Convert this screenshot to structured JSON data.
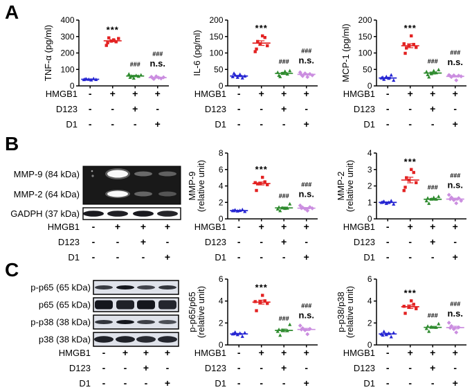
{
  "panels": {
    "a": "A",
    "b": "B",
    "c": "C"
  },
  "colors": {
    "control": "#2626d2",
    "hmgb1": "#e32222",
    "d123": "#2e8b2e",
    "d1": "#cb8ee0",
    "axis": "#000000",
    "gel_background": "#191919",
    "strip_background": "#dfe2ea",
    "band_dark": "#14161d"
  },
  "treatment_table": {
    "rows": [
      {
        "label": "HMGB1",
        "values": [
          "-",
          "+",
          "+",
          "+"
        ]
      },
      {
        "label": "D123",
        "values": [
          "-",
          "-",
          "+",
          "-"
        ]
      },
      {
        "label": "D1",
        "values": [
          "-",
          "-",
          "-",
          "+"
        ]
      }
    ]
  },
  "annotations_legend": {
    "significance_vs_control": "***",
    "significance_vs_hmgb1": "###",
    "not_significant": "n.s."
  },
  "chart_data": [
    {
      "id": "tnf_alpha",
      "panel": "A",
      "type": "scatter",
      "ylabel": [
        "TNF-α (pg/ml)"
      ],
      "ylim": [
        0,
        400
      ],
      "yticks": [
        0,
        100,
        200,
        300,
        400
      ],
      "groups": [
        {
          "name": "Control",
          "color_key": "control",
          "marker": "triangle",
          "points": [
            38,
            42,
            40,
            36,
            44,
            39,
            41
          ],
          "mean": 40,
          "sem": 2,
          "annotations": []
        },
        {
          "name": "HMGB1",
          "color_key": "hmgb1",
          "marker": "square",
          "points": [
            272,
            280,
            268,
            288,
            262,
            246,
            292
          ],
          "mean": 274,
          "sem": 6,
          "annotations": [
            "***"
          ]
        },
        {
          "name": "HMGB1+D123",
          "color_key": "d123",
          "marker": "triangle",
          "points": [
            58,
            66,
            52,
            72,
            60,
            47,
            63
          ],
          "mean": 60,
          "sem": 4,
          "annotations": [
            "###"
          ]
        },
        {
          "name": "HMGB1+D1",
          "color_key": "d1",
          "marker": "diamond",
          "points": [
            48,
            55,
            42,
            58,
            50,
            45,
            52
          ],
          "mean": 50,
          "sem": 3,
          "annotations": [
            "###",
            "n.s."
          ]
        }
      ]
    },
    {
      "id": "il6",
      "panel": "A",
      "type": "scatter",
      "ylabel": [
        "IL-6 (pg/ml)"
      ],
      "ylim": [
        0,
        200
      ],
      "yticks": [
        0,
        50,
        100,
        150,
        200
      ],
      "groups": [
        {
          "name": "Control",
          "color_key": "control",
          "marker": "triangle",
          "points": [
            28,
            33,
            26,
            35,
            24,
            30,
            38
          ],
          "mean": 30,
          "sem": 2,
          "annotations": []
        },
        {
          "name": "HMGB1",
          "color_key": "hmgb1",
          "marker": "square",
          "points": [
            128,
            152,
            147,
            122,
            112,
            104,
            135
          ],
          "mean": 130,
          "sem": 7,
          "annotations": [
            "***"
          ]
        },
        {
          "name": "HMGB1+D123",
          "color_key": "d123",
          "marker": "triangle",
          "points": [
            36,
            46,
            32,
            41,
            28,
            38,
            44
          ],
          "mean": 38,
          "sem": 3,
          "annotations": [
            "###"
          ]
        },
        {
          "name": "HMGB1+D1",
          "color_key": "d1",
          "marker": "diamond",
          "points": [
            34,
            41,
            30,
            38,
            27,
            36,
            32
          ],
          "mean": 35,
          "sem": 2,
          "annotations": [
            "###",
            "n.s."
          ]
        }
      ]
    },
    {
      "id": "mcp1",
      "panel": "A",
      "type": "scatter",
      "ylabel": [
        "MCP-1 (pg/ml)"
      ],
      "ylim": [
        0,
        200
      ],
      "yticks": [
        0,
        50,
        100,
        150,
        200
      ],
      "groups": [
        {
          "name": "Control",
          "color_key": "control",
          "marker": "triangle",
          "points": [
            24,
            20,
            28,
            23,
            33,
            17,
            26
          ],
          "mean": 24,
          "sem": 2,
          "annotations": []
        },
        {
          "name": "HMGB1",
          "color_key": "hmgb1",
          "marker": "square",
          "points": [
            122,
            152,
            126,
            117,
            99,
            128,
            115
          ],
          "mean": 122,
          "sem": 6,
          "annotations": [
            "***"
          ]
        },
        {
          "name": "HMGB1+D123",
          "color_key": "d123",
          "marker": "triangle",
          "points": [
            40,
            49,
            34,
            43,
            27,
            37,
            46
          ],
          "mean": 39,
          "sem": 3,
          "annotations": [
            "###"
          ]
        },
        {
          "name": "HMGB1+D1",
          "color_key": "d1",
          "marker": "diamond",
          "points": [
            30,
            33,
            27,
            32,
            17,
            31,
            29
          ],
          "mean": 29,
          "sem": 2,
          "annotations": [
            "###",
            "n.s."
          ]
        }
      ]
    },
    {
      "id": "mmp9",
      "panel": "B",
      "type": "scatter",
      "ylabel": [
        "MMP-9",
        "(relative unit)"
      ],
      "ylim": [
        0,
        8
      ],
      "yticks": [
        0,
        2,
        4,
        6,
        8
      ],
      "groups": [
        {
          "name": "Control",
          "color_key": "control",
          "marker": "triangle",
          "points": [
            1.0,
            1.08,
            0.95,
            1.02,
            1.12,
            0.9,
            1.0
          ],
          "mean": 1.0,
          "sem": 0.04,
          "annotations": []
        },
        {
          "name": "HMGB1",
          "color_key": "hmgb1",
          "marker": "square",
          "points": [
            4.3,
            5.05,
            4.5,
            4.15,
            3.45,
            4.4,
            4.25
          ],
          "mean": 4.3,
          "sem": 0.18,
          "annotations": [
            "***"
          ]
        },
        {
          "name": "HMGB1+D123",
          "color_key": "d123",
          "marker": "triangle",
          "points": [
            1.3,
            1.82,
            1.42,
            1.2,
            1.0,
            1.33,
            1.27
          ],
          "mean": 1.33,
          "sem": 0.1,
          "annotations": [
            "###"
          ]
        },
        {
          "name": "HMGB1+D1",
          "color_key": "d1",
          "marker": "diamond",
          "points": [
            1.3,
            1.62,
            1.38,
            1.22,
            1.0,
            1.42,
            1.28
          ],
          "mean": 1.3,
          "sem": 0.08,
          "annotations": [
            "###",
            "n.s."
          ]
        }
      ]
    },
    {
      "id": "mmp2",
      "panel": "B",
      "type": "scatter",
      "ylabel": [
        "MMP-2",
        "(relative unit)"
      ],
      "ylim": [
        0,
        4
      ],
      "yticks": [
        0,
        1,
        2,
        3,
        4
      ],
      "groups": [
        {
          "name": "Control",
          "color_key": "control",
          "marker": "triangle",
          "points": [
            1.0,
            1.06,
            0.94,
            1.0,
            1.1,
            0.9,
            1.02
          ],
          "mean": 1.0,
          "sem": 0.03,
          "annotations": []
        },
        {
          "name": "HMGB1",
          "color_key": "hmgb1",
          "marker": "square",
          "points": [
            2.35,
            3.0,
            2.82,
            2.2,
            1.92,
            1.72,
            2.5
          ],
          "mean": 2.36,
          "sem": 0.17,
          "annotations": [
            "***"
          ]
        },
        {
          "name": "HMGB1+D123",
          "color_key": "d123",
          "marker": "triangle",
          "points": [
            1.2,
            1.36,
            1.26,
            1.1,
            0.94,
            1.2,
            1.3
          ],
          "mean": 1.19,
          "sem": 0.05,
          "annotations": [
            "###"
          ]
        },
        {
          "name": "HMGB1+D1",
          "color_key": "d1",
          "marker": "diamond",
          "points": [
            1.2,
            1.46,
            1.3,
            1.14,
            0.95,
            1.26,
            1.1
          ],
          "mean": 1.2,
          "sem": 0.06,
          "annotations": [
            "###",
            "n.s."
          ]
        }
      ]
    },
    {
      "id": "p_p65_ratio",
      "panel": "C",
      "type": "scatter",
      "ylabel": [
        "p-p65/p65",
        "(relative unit)"
      ],
      "ylim": [
        0,
        6
      ],
      "yticks": [
        0,
        2,
        4,
        6
      ],
      "groups": [
        {
          "name": "Control",
          "color_key": "control",
          "marker": "triangle",
          "points": [
            1.0,
            1.16,
            0.94,
            1.06,
            0.78,
            1.1,
            1.02
          ],
          "mean": 1.0,
          "sem": 0.05,
          "annotations": []
        },
        {
          "name": "HMGB1",
          "color_key": "hmgb1",
          "marker": "square",
          "points": [
            3.9,
            4.52,
            4.02,
            3.78,
            3.12,
            3.95
          ],
          "mean": 3.9,
          "sem": 0.18,
          "annotations": [
            "***"
          ]
        },
        {
          "name": "HMGB1+D123",
          "color_key": "d123",
          "marker": "triangle",
          "points": [
            1.3,
            1.86,
            1.4,
            1.24,
            0.88,
            1.34
          ],
          "mean": 1.32,
          "sem": 0.12,
          "annotations": [
            "###"
          ]
        },
        {
          "name": "HMGB1+D1",
          "color_key": "d1",
          "marker": "diamond",
          "points": [
            1.4,
            1.76,
            1.52,
            1.34,
            0.98,
            1.46
          ],
          "mean": 1.41,
          "sem": 0.1,
          "annotations": [
            "###",
            "n.s."
          ]
        }
      ]
    },
    {
      "id": "p_p38_ratio",
      "panel": "C",
      "type": "scatter",
      "ylabel": [
        "p-p38/p38",
        "(relative unit)"
      ],
      "ylim": [
        0,
        6
      ],
      "yticks": [
        0,
        2,
        4,
        6
      ],
      "groups": [
        {
          "name": "Control",
          "color_key": "control",
          "marker": "triangle",
          "points": [
            1.0,
            1.22,
            0.94,
            1.06,
            0.74,
            1.1,
            0.9
          ],
          "mean": 1.0,
          "sem": 0.06,
          "annotations": []
        },
        {
          "name": "HMGB1",
          "color_key": "hmgb1",
          "marker": "square",
          "points": [
            3.45,
            4.02,
            3.7,
            3.3,
            2.88,
            3.52
          ],
          "mean": 3.48,
          "sem": 0.16,
          "annotations": [
            "***"
          ]
        },
        {
          "name": "HMGB1+D123",
          "color_key": "d123",
          "marker": "triangle",
          "points": [
            1.6,
            1.92,
            1.7,
            1.5,
            1.24,
            1.64
          ],
          "mean": 1.6,
          "sem": 0.09,
          "annotations": [
            "###"
          ]
        },
        {
          "name": "HMGB1+D1",
          "color_key": "d1",
          "marker": "diamond",
          "points": [
            1.55,
            2.02,
            1.72,
            1.44,
            1.14,
            1.6
          ],
          "mean": 1.58,
          "sem": 0.12,
          "annotations": [
            "###",
            "n.s."
          ]
        }
      ]
    }
  ],
  "blots": {
    "panel_b": {
      "gel_rows": [
        {
          "label": "MMP-9 (84 kDa)",
          "intensities": [
            0.06,
            1.0,
            0.32,
            0.28
          ]
        },
        {
          "label": "MMP-2 (64 kDa)",
          "intensities": [
            0.04,
            0.85,
            0.3,
            0.24
          ]
        }
      ],
      "loading_row": {
        "label": "GADPH (37 kDa)",
        "intensities": [
          0.95,
          0.92,
          0.95,
          0.9
        ]
      }
    },
    "panel_c": {
      "strips": [
        {
          "label": "p-p65 (65 kDa)",
          "style": "thin",
          "intensities": [
            0.82,
            1.0,
            0.78,
            0.85
          ]
        },
        {
          "label": "p65 (65 kDa)",
          "style": "thick",
          "intensities": [
            1.0,
            0.95,
            1.0,
            0.92
          ]
        },
        {
          "label": "p-p38 (38 kDa)",
          "style": "thin",
          "intensities": [
            0.85,
            1.0,
            0.8,
            0.72
          ]
        },
        {
          "label": "p38 (38 kDa)",
          "style": "medium",
          "intensities": [
            0.95,
            0.95,
            0.9,
            0.92
          ]
        }
      ]
    }
  }
}
